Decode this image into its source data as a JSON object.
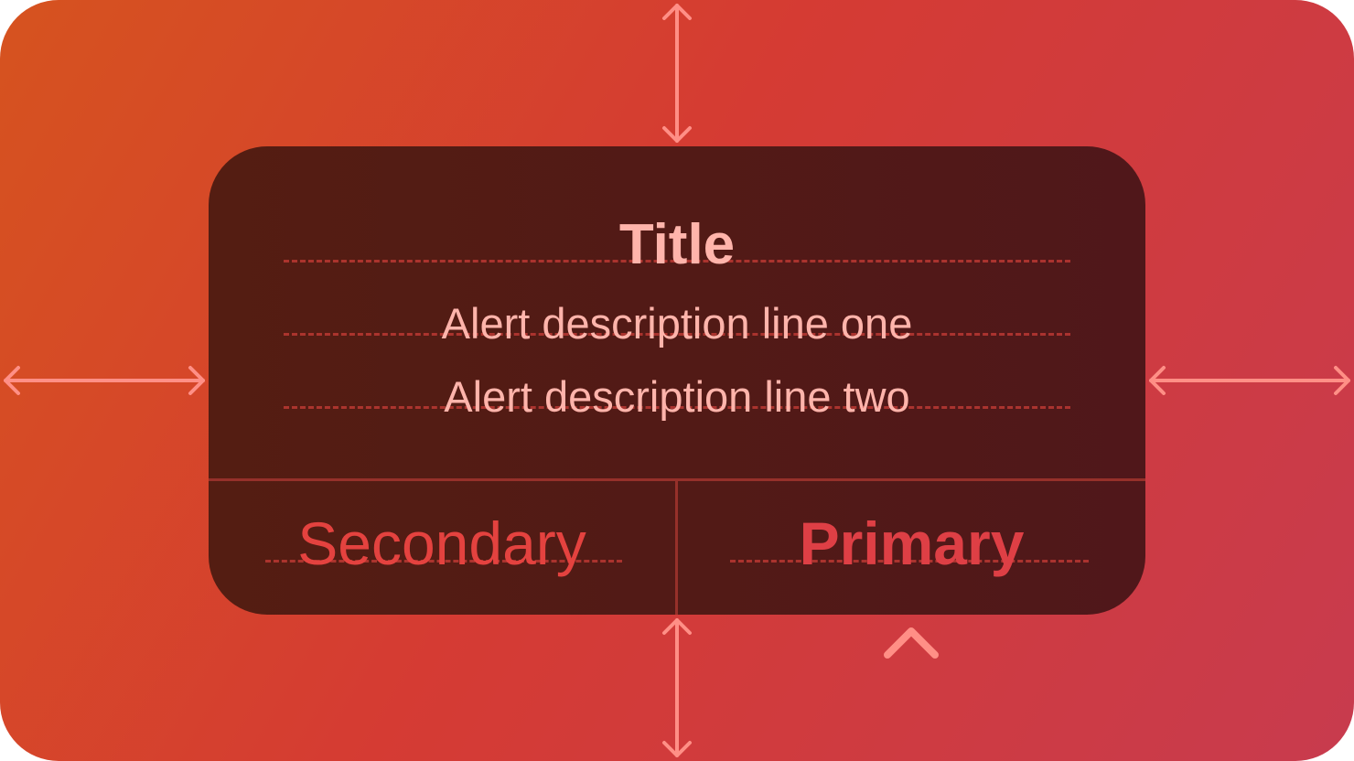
{
  "alert": {
    "title": "Title",
    "description_line_one": "Alert description line one",
    "description_line_two": "Alert description line two",
    "secondary_label": "Secondary",
    "primary_label": "Primary"
  },
  "colors": {
    "background_start": "#d6531f",
    "background_end": "#c83b4e",
    "alert_background": "#541d12",
    "text": "#ffb4ab",
    "button_text": "#e4423f",
    "separator": "#96302a",
    "annotation_arrow": "#ff8f86"
  },
  "icons": {
    "spacing_arrows": "double-headed-arrow-icon",
    "primary_indicator": "chevron-up-icon"
  }
}
